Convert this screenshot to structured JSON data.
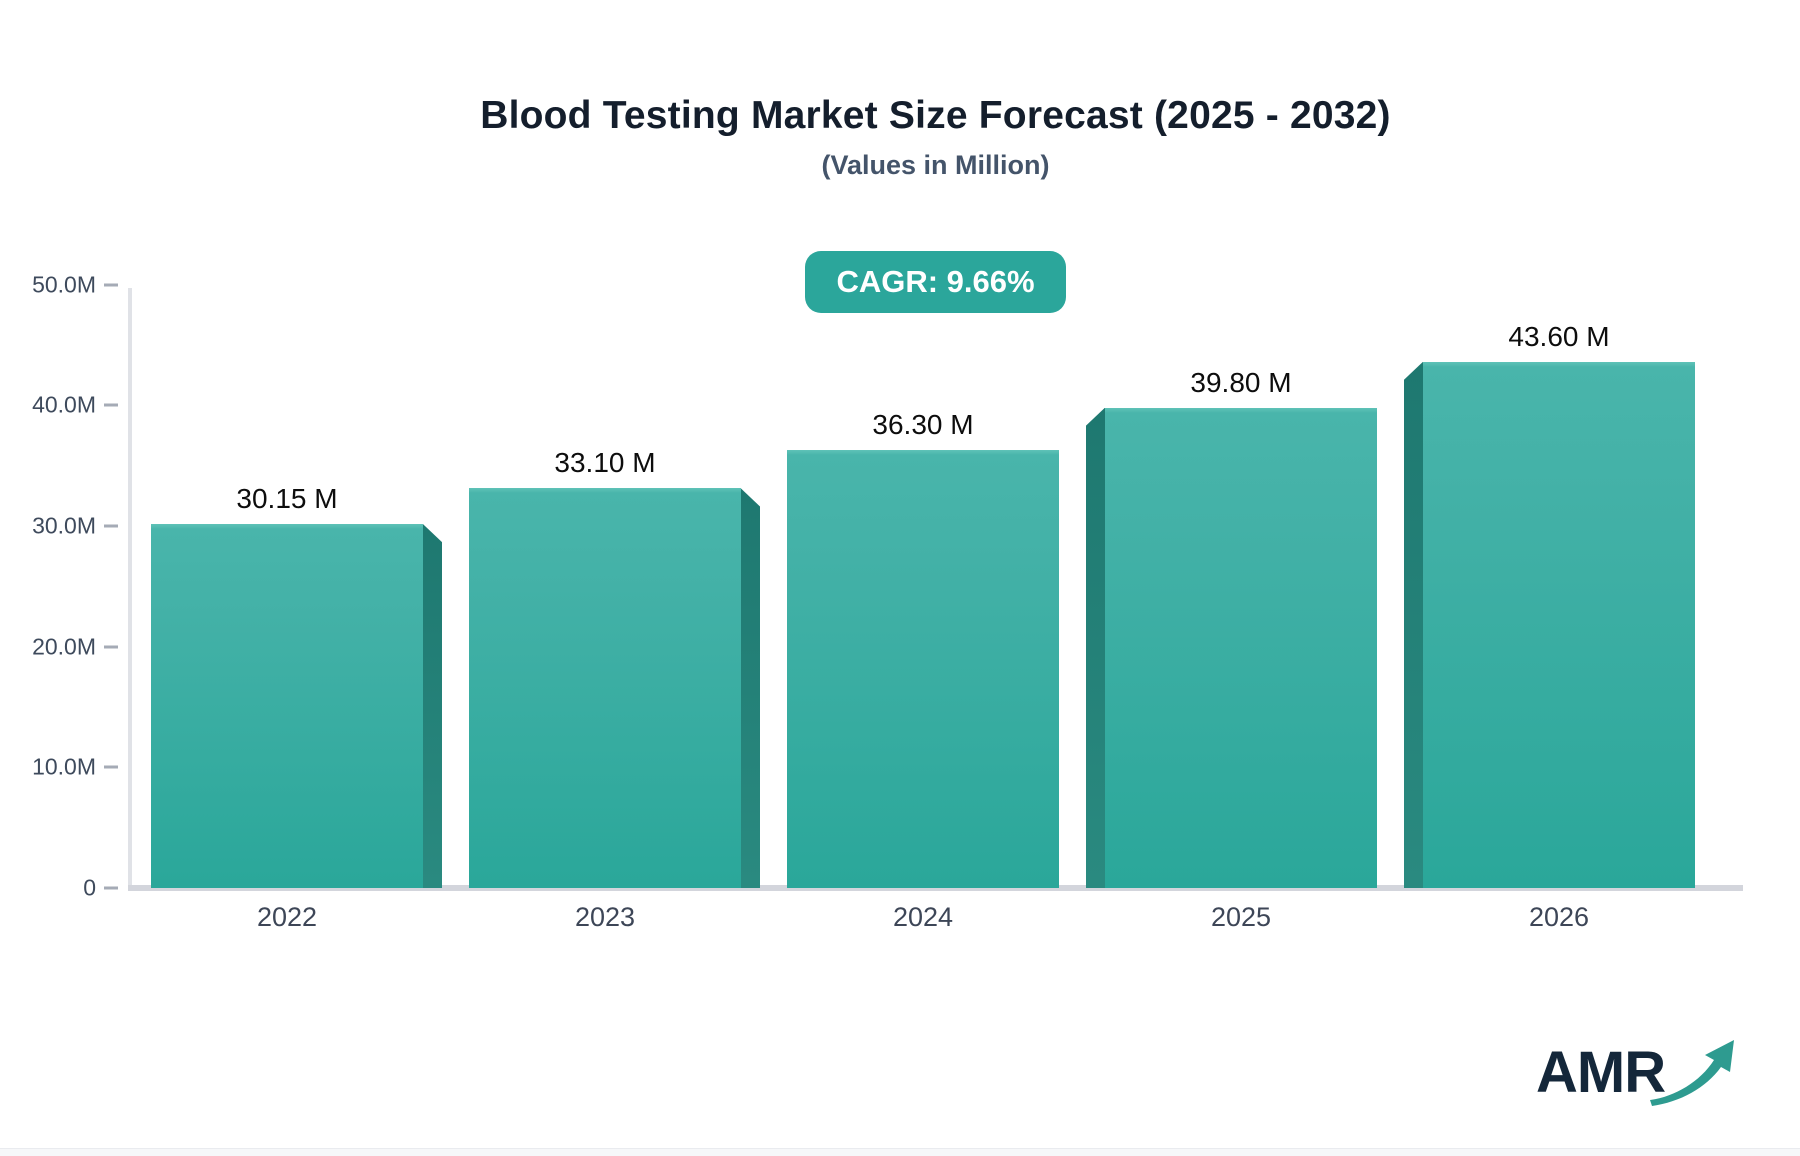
{
  "header": {
    "title": "Blood Testing Market Size Forecast (2025 - 2032)",
    "subtitle": "(Values in Million)"
  },
  "badge": {
    "label": "CAGR: 9.66%",
    "bg": "#2BA69B",
    "text_color": "#FFFFFF"
  },
  "chart_data": {
    "type": "bar",
    "title": "Blood Testing Market Size Forecast (2025 - 2032)",
    "subtitle": "(Values in Million)",
    "unit": "Million",
    "categories": [
      "2022",
      "2023",
      "2024",
      "2025",
      "2026"
    ],
    "values": [
      30.15,
      33.1,
      36.3,
      39.8,
      43.6
    ],
    "bar_labels": [
      "30.15 M",
      "33.10 M",
      "36.30 M",
      "39.80 M",
      "43.60 M"
    ],
    "cagr": "9.66%",
    "ylim": [
      0,
      50
    ],
    "yticks": [
      {
        "label": "50.0M",
        "value": 50
      },
      {
        "label": "40.0M",
        "value": 40
      },
      {
        "label": "30.0M",
        "value": 30
      },
      {
        "label": "20.0M",
        "value": 20
      },
      {
        "label": "10.0M",
        "value": 10
      },
      {
        "label": "0",
        "value": 0
      }
    ],
    "grid": "off",
    "legend": "none",
    "bar_face_color": "#3AAFA4",
    "bar_side_color": "#1F7A70",
    "bar_3d_sides": [
      "right",
      "right",
      "none",
      "left",
      "left"
    ]
  },
  "logo": {
    "text": "AMR",
    "text_color": "#14273A",
    "arrow_color": "#2E9B90"
  }
}
